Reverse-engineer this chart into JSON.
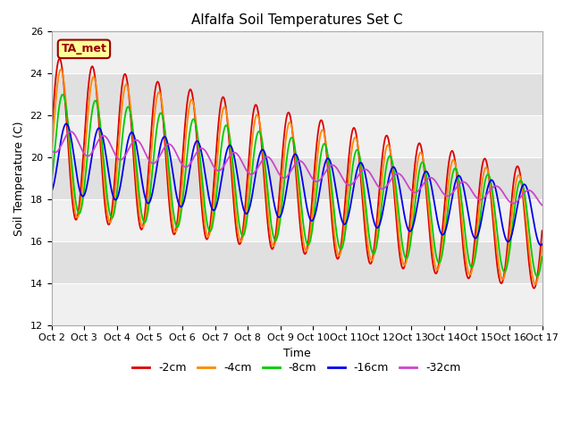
{
  "title": "Alfalfa Soil Temperatures Set C",
  "xlabel": "Time",
  "ylabel": "Soil Temperature (C)",
  "xlim": [
    0,
    15
  ],
  "ylim": [
    12,
    26
  ],
  "yticks": [
    12,
    14,
    16,
    18,
    20,
    22,
    24,
    26
  ],
  "xtick_labels": [
    "Oct 2",
    "Oct 3",
    "Oct 4",
    "Oct 5",
    "Oct 6",
    "Oct 7",
    "Oct 8",
    "Oct 9",
    "Oct 10",
    "Oct 11",
    "Oct 12",
    "Oct 13",
    "Oct 14",
    "Oct 15",
    "Oct 16",
    "Oct 17"
  ],
  "fig_bg": "#ffffff",
  "plot_bg": "#e8e8e8",
  "grid_color": "#ffffff",
  "series": [
    {
      "label": "-2cm",
      "color": "#dd0000",
      "amp0": 3.8,
      "amp1": 2.8,
      "mean0": 21.0,
      "mean1": 16.5,
      "phase": 0.0
    },
    {
      "label": "-4cm",
      "color": "#ff8800",
      "amp0": 3.5,
      "amp1": 2.5,
      "mean0": 20.8,
      "mean1": 16.4,
      "phase": 0.25
    },
    {
      "label": "-8cm",
      "color": "#00cc00",
      "amp0": 2.8,
      "amp1": 2.2,
      "mean0": 20.3,
      "mean1": 16.5,
      "phase": 0.6
    },
    {
      "label": "-16cm",
      "color": "#0000ee",
      "amp0": 1.7,
      "amp1": 1.4,
      "mean0": 20.0,
      "mean1": 17.2,
      "phase": 1.3
    },
    {
      "label": "-32cm",
      "color": "#cc44cc",
      "amp0": 0.55,
      "amp1": 0.35,
      "mean0": 20.8,
      "mean1": 18.0,
      "phase": 2.2
    }
  ],
  "ta_met_box_color": "#ffff99",
  "ta_met_text_color": "#990000",
  "ta_met_border_color": "#990000",
  "freq": 1.0,
  "title_fontsize": 11,
  "axis_label_fontsize": 9,
  "tick_fontsize": 8,
  "legend_fontsize": 9,
  "linewidth": 1.3,
  "band_colors": [
    "#f0f0f0",
    "#e0e0e0"
  ]
}
